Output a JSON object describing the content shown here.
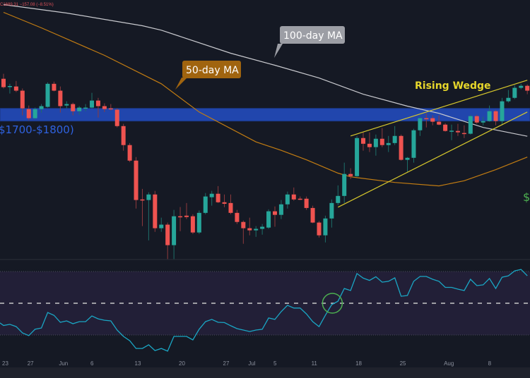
{
  "header": {
    "ohlc_readout": "C1689.31  −157.08 (−8.51%)"
  },
  "colors": {
    "background": "#151924",
    "up": "#26a69a",
    "down": "#ef5350",
    "zone": "#2146ad",
    "zone_text": "#2f62e0",
    "ma50": "#c27c12",
    "ma100": "#c9cacf",
    "wedge": "#d6c72c",
    "rsi": "#1aa6c4",
    "rsi_band": "#221f37",
    "circle": "#4caf50",
    "dollar": "#4caf50"
  },
  "annotations": {
    "ma100_label": "100-day MA",
    "ma50_label": "50-day MA",
    "zone_label": "$1700-$1800)",
    "wedge_label": "Rising Wedge",
    "dollar_label": "$"
  },
  "chart_data": [
    {
      "type": "candlestick",
      "scale": "log",
      "ylim": [
        915,
        2930
      ],
      "grid": false,
      "x_ticks": [
        {
          "label": "23",
          "date": "05-23"
        },
        {
          "label": "27",
          "date": "05-27"
        },
        {
          "label": "Jun",
          "date": "06-01"
        },
        {
          "label": "6",
          "date": "06-06"
        },
        {
          "label": "13",
          "date": "06-13"
        },
        {
          "label": "20",
          "date": "06-20"
        },
        {
          "label": "27",
          "date": "06-27"
        },
        {
          "label": "Jul",
          "date": "07-01"
        },
        {
          "label": "5",
          "date": "07-05"
        },
        {
          "label": "11",
          "date": "07-11"
        },
        {
          "label": "18",
          "date": "07-18"
        },
        {
          "label": "25",
          "date": "07-25"
        },
        {
          "label": "Aug",
          "date": "08-01"
        },
        {
          "label": "8",
          "date": "08-08"
        }
      ],
      "candles_columns": [
        "date",
        "open",
        "high",
        "low",
        "close"
      ],
      "candles": [
        [
          "05-23",
          2056,
          2103,
          1968,
          1980
        ],
        [
          "05-24",
          1986,
          2010,
          1924,
          1990
        ],
        [
          "05-25",
          1986,
          2036,
          1936,
          1949
        ],
        [
          "05-26",
          1949,
          1968,
          1744,
          1800
        ],
        [
          "05-27",
          1794,
          1823,
          1705,
          1722
        ],
        [
          "05-28",
          1722,
          1806,
          1716,
          1794
        ],
        [
          "05-29",
          1794,
          1835,
          1766,
          1818
        ],
        [
          "05-30",
          1812,
          2023,
          1806,
          2010
        ],
        [
          "05-31",
          2010,
          2030,
          1943,
          1949
        ],
        [
          "06-01",
          1949,
          1986,
          1766,
          1818
        ],
        [
          "06-02",
          1823,
          1858,
          1800,
          1835
        ],
        [
          "06-03",
          1835,
          1847,
          1744,
          1777
        ],
        [
          "06-04",
          1777,
          1818,
          1749,
          1806
        ],
        [
          "06-05",
          1803,
          1835,
          1777,
          1806
        ],
        [
          "06-06",
          1806,
          1930,
          1800,
          1864
        ],
        [
          "06-07",
          1864,
          1887,
          1727,
          1818
        ],
        [
          "06-08",
          1818,
          1841,
          1771,
          1794
        ],
        [
          "06-09",
          1800,
          1835,
          1783,
          1794
        ],
        [
          "06-10",
          1789,
          1800,
          1652,
          1662
        ],
        [
          "06-11",
          1662,
          1679,
          1488,
          1526
        ],
        [
          "06-12",
          1526,
          1540,
          1414,
          1423
        ],
        [
          "06-13",
          1423,
          1446,
          1147,
          1192
        ],
        [
          "06-14",
          1195,
          1253,
          1060,
          1192
        ],
        [
          "06-15",
          1192,
          1234,
          994,
          1222
        ],
        [
          "06-16",
          1222,
          1242,
          1033,
          1050
        ],
        [
          "06-17",
          1050,
          1101,
          1033,
          1067
        ],
        [
          "06-18",
          1067,
          1077,
          914,
          973
        ],
        [
          "06-19",
          973,
          1140,
          914,
          1108
        ],
        [
          "06-20",
          1108,
          1155,
          1036,
          1104
        ],
        [
          "06-21",
          1111,
          1176,
          1094,
          1104
        ],
        [
          "06-22",
          1108,
          1118,
          1023,
          1030
        ],
        [
          "06-23",
          1030,
          1137,
          1023,
          1125
        ],
        [
          "06-24",
          1125,
          1230,
          1118,
          1211
        ],
        [
          "06-25",
          1207,
          1242,
          1162,
          1226
        ],
        [
          "06-26",
          1226,
          1269,
          1176,
          1180
        ],
        [
          "06-27",
          1180,
          1222,
          1154,
          1172
        ],
        [
          "06-28",
          1176,
          1222,
          1118,
          1125
        ],
        [
          "06-29",
          1125,
          1140,
          1070,
          1080
        ],
        [
          "06-30",
          1080,
          1087,
          979,
          1050
        ],
        [
          "07-01",
          1050,
          1101,
          1017,
          1040
        ],
        [
          "07-02",
          1040,
          1060,
          1010,
          1047
        ],
        [
          "07-03",
          1047,
          1070,
          1020,
          1057
        ],
        [
          "07-04",
          1053,
          1143,
          1047,
          1133
        ],
        [
          "07-05",
          1133,
          1158,
          1057,
          1115
        ],
        [
          "07-06",
          1115,
          1192,
          1094,
          1169
        ],
        [
          "07-07",
          1169,
          1238,
          1147,
          1222
        ],
        [
          "07-08",
          1222,
          1261,
          1188,
          1195
        ],
        [
          "07-09",
          1199,
          1211,
          1192,
          1195
        ],
        [
          "07-10",
          1199,
          1211,
          1140,
          1150
        ],
        [
          "07-11",
          1150,
          1162,
          1074,
          1077
        ],
        [
          "07-12",
          1077,
          1084,
          1007,
          1017
        ],
        [
          "07-13",
          1017,
          1111,
          985,
          1097
        ],
        [
          "07-14",
          1097,
          1195,
          1053,
          1176
        ],
        [
          "07-15",
          1176,
          1273,
          1165,
          1214
        ],
        [
          "07-16",
          1214,
          1410,
          1176,
          1340
        ],
        [
          "07-17",
          1340,
          1375,
          1310,
          1327
        ],
        [
          "07-18",
          1327,
          1590,
          1323,
          1575
        ],
        [
          "07-19",
          1575,
          1616,
          1488,
          1535
        ],
        [
          "07-20",
          1535,
          1616,
          1479,
          1512
        ],
        [
          "07-21",
          1512,
          1600,
          1455,
          1570
        ],
        [
          "07-22",
          1570,
          1647,
          1512,
          1526
        ],
        [
          "07-23",
          1526,
          1590,
          1479,
          1540
        ],
        [
          "07-24",
          1540,
          1662,
          1526,
          1590
        ],
        [
          "07-25",
          1590,
          1600,
          1423,
          1428
        ],
        [
          "07-26",
          1428,
          1446,
          1353,
          1441
        ],
        [
          "07-27",
          1441,
          1642,
          1410,
          1631
        ],
        [
          "07-28",
          1631,
          1738,
          1590,
          1722
        ],
        [
          "07-29",
          1722,
          1760,
          1652,
          1716
        ],
        [
          "07-30",
          1722,
          1744,
          1668,
          1695
        ],
        [
          "07-31",
          1695,
          1744,
          1668,
          1673
        ],
        [
          "08-01",
          1673,
          1684,
          1621,
          1626
        ],
        [
          "08-02",
          1624,
          1673,
          1560,
          1628
        ],
        [
          "08-03",
          1626,
          1679,
          1590,
          1616
        ],
        [
          "08-04",
          1611,
          1668,
          1575,
          1606
        ],
        [
          "08-05",
          1606,
          1749,
          1600,
          1738
        ],
        [
          "08-06",
          1738,
          1749,
          1679,
          1689
        ],
        [
          "08-07",
          1689,
          1733,
          1668,
          1700
        ],
        [
          "08-08",
          1700,
          1823,
          1695,
          1777
        ],
        [
          "08-09",
          1777,
          1789,
          1668,
          1700
        ],
        [
          "08-10",
          1700,
          1887,
          1668,
          1858
        ],
        [
          "08-11",
          1858,
          1955,
          1847,
          1887
        ],
        [
          "08-12",
          1887,
          1998,
          1876,
          1974
        ],
        [
          "08-13",
          1974,
          2010,
          1961,
          1992
        ],
        [
          "08-14",
          1992,
          2004,
          1918,
          1949
        ]
      ],
      "zone": {
        "low": 1700,
        "high": 1800
      },
      "ma100": [
        [
          "05-23",
          2870
        ],
        [
          "06-02",
          2763
        ],
        [
          "06-14",
          2610
        ],
        [
          "06-17",
          2558
        ],
        [
          "06-28",
          2306
        ],
        [
          "07-05",
          2185
        ],
        [
          "07-12",
          2063
        ],
        [
          "07-19",
          1918
        ],
        [
          "07-26",
          1818
        ],
        [
          "07-31",
          1760
        ],
        [
          "08-07",
          1652
        ],
        [
          "08-14",
          1588
        ]
      ],
      "ma50": [
        [
          "05-23",
          2772
        ],
        [
          "05-29",
          2585
        ],
        [
          "06-08",
          2284
        ],
        [
          "06-17",
          2010
        ],
        [
          "06-23",
          1771
        ],
        [
          "07-02",
          1548
        ],
        [
          "07-06",
          1490
        ],
        [
          "07-10",
          1428
        ],
        [
          "07-15",
          1345
        ],
        [
          "07-17",
          1323
        ],
        [
          "07-24",
          1290
        ],
        [
          "07-31",
          1270
        ],
        [
          "08-04",
          1300
        ],
        [
          "08-09",
          1366
        ],
        [
          "08-14",
          1446
        ]
      ],
      "wedge_upper": [
        [
          "07-17",
          1590
        ],
        [
          "08-14",
          2043
        ]
      ],
      "wedge_lower": [
        [
          "07-15",
          1154
        ],
        [
          "08-14",
          1771
        ]
      ]
    },
    {
      "type": "line",
      "series": "RSI",
      "ylim": [
        14,
        77
      ],
      "levels": {
        "upper": 70,
        "middle": 50,
        "lower": 30
      },
      "highlight_crossing_date": "07-14",
      "values": [
        36,
        36.7,
        35.3,
        31.3,
        29.6,
        33.6,
        34.4,
        44.2,
        42.4,
        38,
        38.9,
        37.1,
        38.4,
        38.4,
        42,
        40.2,
        39.3,
        38.9,
        33.1,
        29.1,
        26.4,
        21.5,
        21.5,
        23.8,
        20.2,
        21.5,
        19.8,
        29.1,
        29.1,
        29.1,
        26.9,
        33.6,
        38.4,
        39.8,
        38,
        37.8,
        35.8,
        34,
        33.1,
        32.2,
        33.1,
        33.6,
        40.7,
        39.8,
        44.7,
        48.7,
        47,
        47,
        43.3,
        38.4,
        35.3,
        42.4,
        49.1,
        51.3,
        59.3,
        58,
        68.7,
        65.8,
        64.4,
        66.7,
        63.3,
        63.8,
        66,
        54.4,
        54.9,
        63.8,
        66.9,
        66.9,
        65.1,
        63.8,
        60,
        60,
        58.9,
        58,
        65.1,
        61.1,
        61.6,
        65.6,
        59.3,
        66.4,
        67.3,
        70.4,
        71.3,
        67.3
      ]
    }
  ]
}
